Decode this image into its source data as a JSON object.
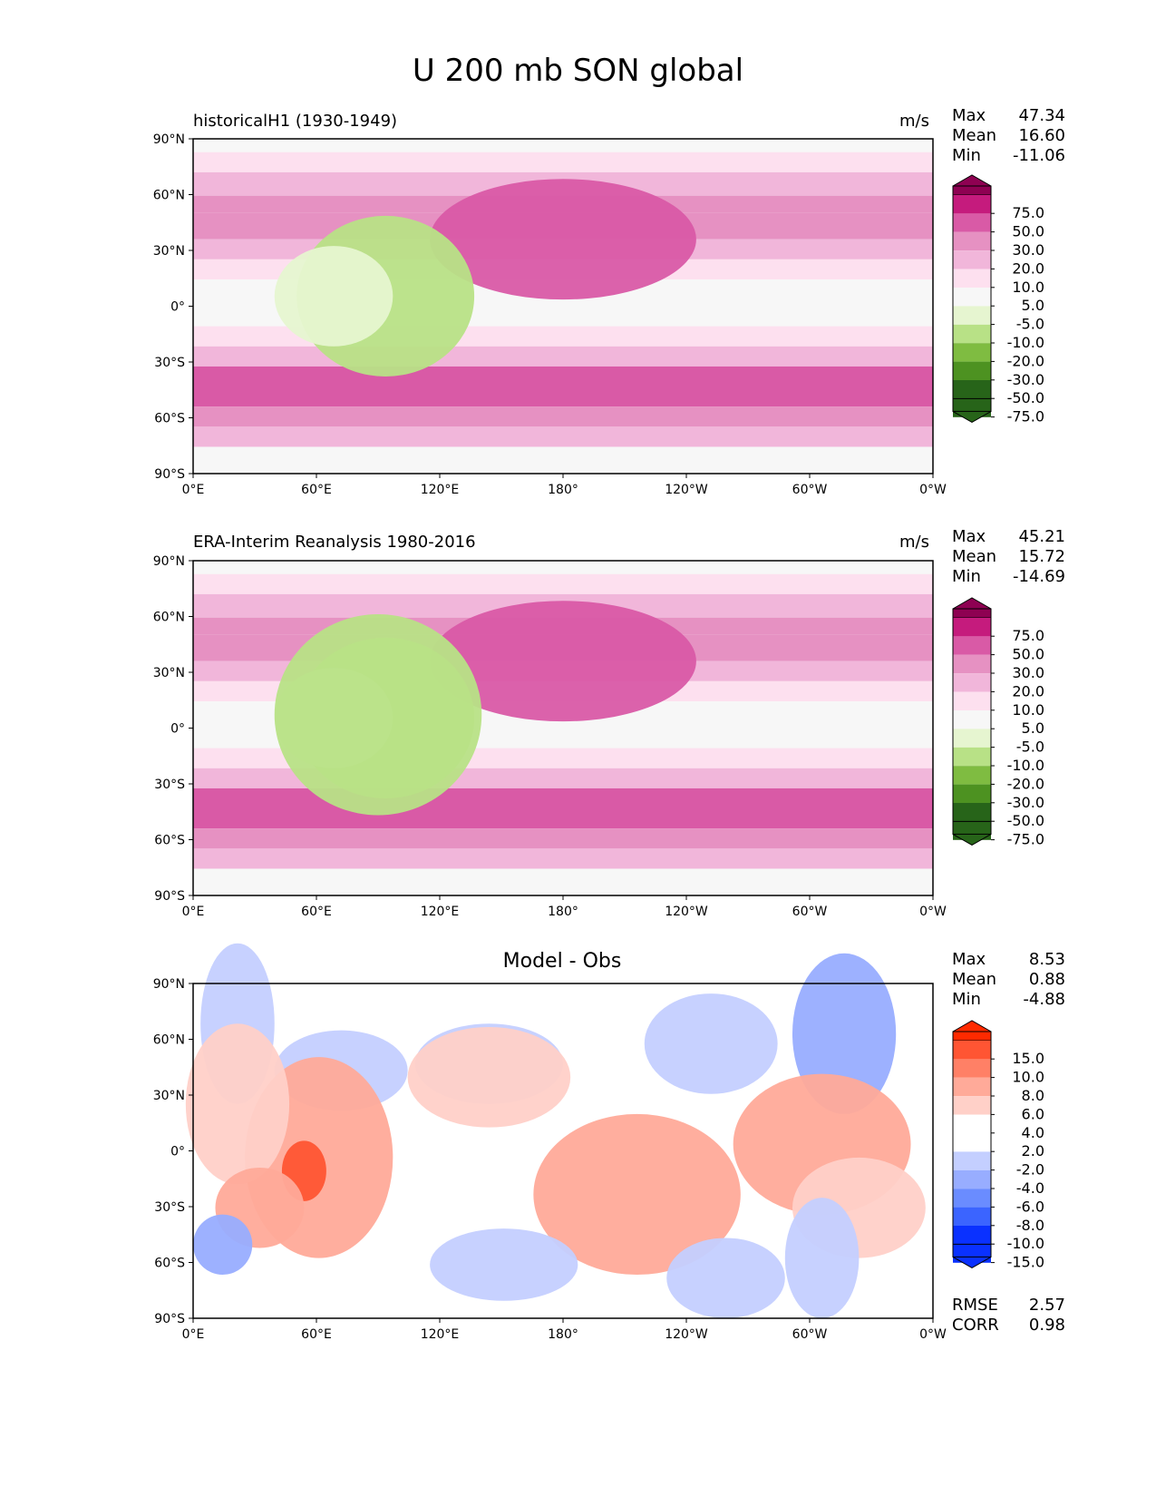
{
  "figure_title": "U 200 mb SON global",
  "lon_ticks": [
    "0°E",
    "60°E",
    "120°E",
    "180°",
    "120°W",
    "60°W",
    "0°W"
  ],
  "lat_ticks": [
    "90°N",
    "60°N",
    "30°N",
    "0°",
    "30°S",
    "60°S",
    "90°S"
  ],
  "colors": {
    "pink_scale": [
      "#276419",
      "#4d9221",
      "#7fbc41",
      "#b8e186",
      "#e6f5d0",
      "#f7f7f7",
      "#fde0ef",
      "#f1b6da",
      "#e691c2",
      "#d95aa6",
      "#c51b7d",
      "#8e0152"
    ],
    "diff_scale": [
      "#0a31ff",
      "#3b64ff",
      "#6a8cff",
      "#98adff",
      "#c4cfff",
      "#ffffff",
      "#ffffff",
      "#ffd0c8",
      "#ffaa99",
      "#ff8066",
      "#ff5533",
      "#ff2a00"
    ]
  },
  "chart_data": [
    {
      "type": "heatmap",
      "title": "historicalH1 (1930-1949)",
      "units": "m/s",
      "stats": {
        "max_label": "Max",
        "max": "47.34",
        "mean_label": "Mean",
        "mean": "16.60",
        "min_label": "Min",
        "min": "-11.06"
      },
      "colorbar_levels": [
        "75.0",
        "50.0",
        "30.0",
        "20.0",
        "10.0",
        "5.0",
        "-5.0",
        "-10.0",
        "-20.0",
        "-30.0",
        "-50.0",
        "-75.0"
      ],
      "xlim": [
        0,
        360
      ],
      "ylim": [
        -90,
        90
      ]
    },
    {
      "type": "heatmap",
      "title": "ERA-Interim Reanalysis 1980-2016",
      "units": "m/s",
      "stats": {
        "max_label": "Max",
        "max": "45.21",
        "mean_label": "Mean",
        "mean": "15.72",
        "min_label": "Min",
        "min": "-14.69"
      },
      "colorbar_levels": [
        "75.0",
        "50.0",
        "30.0",
        "20.0",
        "10.0",
        "5.0",
        "-5.0",
        "-10.0",
        "-20.0",
        "-30.0",
        "-50.0",
        "-75.0"
      ],
      "xlim": [
        0,
        360
      ],
      "ylim": [
        -90,
        90
      ]
    },
    {
      "type": "heatmap",
      "title": "Model - Obs",
      "units": "",
      "stats": {
        "max_label": "Max",
        "max": "8.53",
        "mean_label": "Mean",
        "mean": "0.88",
        "min_label": "Min",
        "min": "-4.88"
      },
      "colorbar_levels": [
        "15.0",
        "10.0",
        "8.0",
        "6.0",
        "4.0",
        "2.0",
        "-2.0",
        "-4.0",
        "-6.0",
        "-8.0",
        "-10.0",
        "-15.0"
      ],
      "extra_stats": {
        "rmse_label": "RMSE",
        "rmse": "2.57",
        "corr_label": "CORR",
        "corr": "0.98"
      },
      "xlim": [
        0,
        360
      ],
      "ylim": [
        -90,
        90
      ]
    }
  ]
}
